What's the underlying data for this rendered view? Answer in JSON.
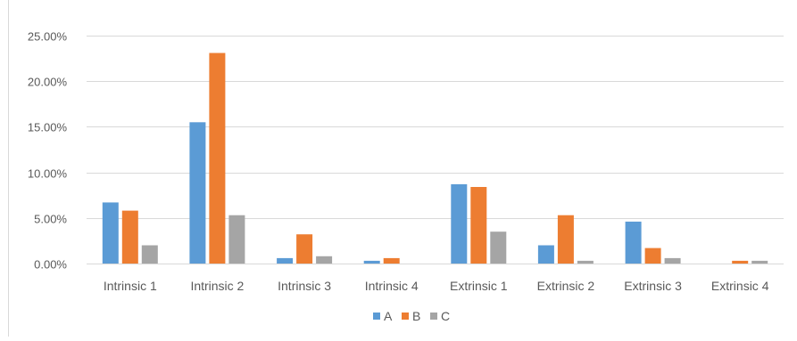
{
  "chart_data": {
    "type": "bar",
    "title": "",
    "xlabel": "",
    "ylabel": "",
    "categories": [
      "Intrinsic 1",
      "Intrinsic 2",
      "Intrinsic 3",
      "Intrinsic 4",
      "Extrinsic 1",
      "Extrinsic 2",
      "Extrinsic 3",
      "Extrinsic 4"
    ],
    "series": [
      {
        "name": "A",
        "color": "#5B9BD5",
        "values": [
          6.7,
          15.5,
          0.6,
          0.3,
          8.7,
          2.0,
          4.6,
          0.0
        ]
      },
      {
        "name": "B",
        "color": "#ED7D31",
        "values": [
          5.8,
          23.1,
          3.2,
          0.6,
          8.4,
          5.3,
          1.7,
          0.3
        ]
      },
      {
        "name": "C",
        "color": "#A5A5A5",
        "values": [
          2.0,
          5.3,
          0.8,
          0.0,
          3.5,
          0.3,
          0.6,
          0.3
        ]
      }
    ],
    "ylim": [
      0,
      25
    ],
    "yticks": [
      "0.00%",
      "5.00%",
      "10.00%",
      "15.00%",
      "20.00%",
      "25.00%"
    ],
    "grid": true,
    "legend_position": "bottom",
    "gridline_color": "#D9D9D9",
    "label_color": "#595959"
  }
}
